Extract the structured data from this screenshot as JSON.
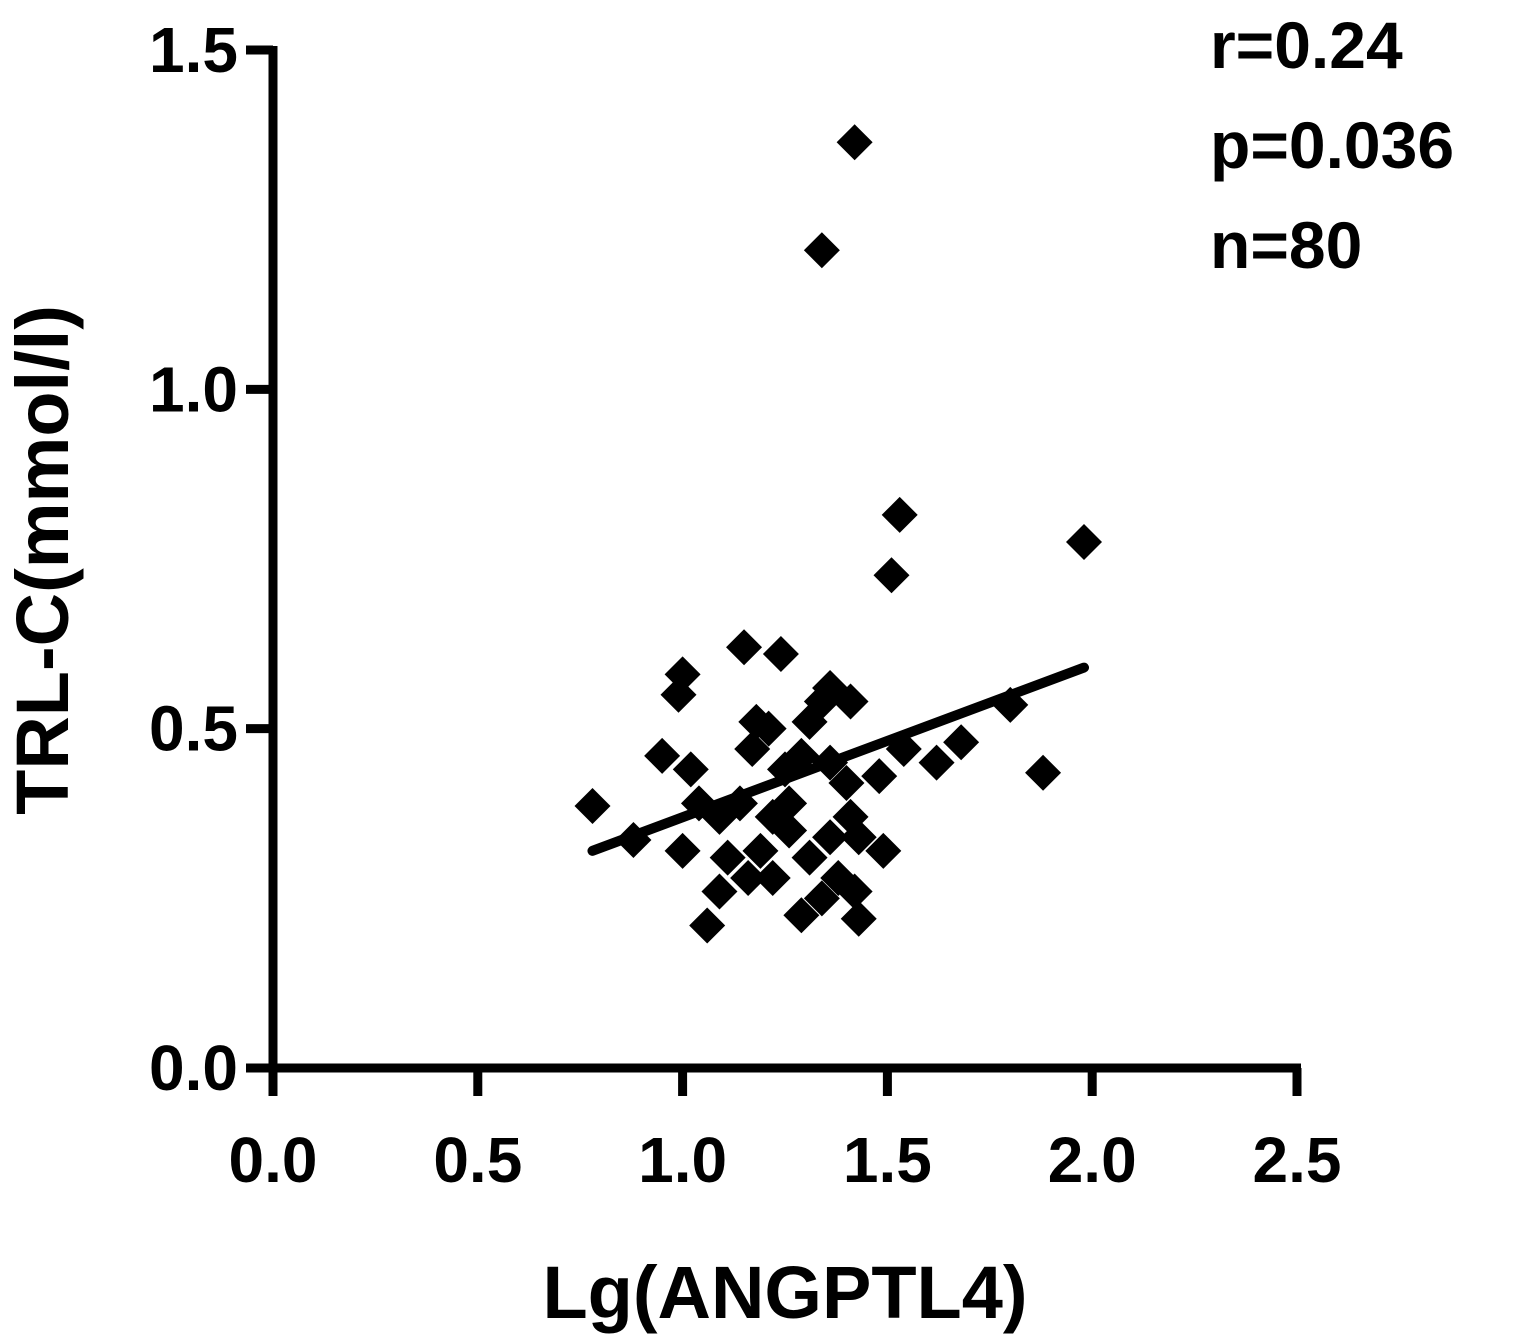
{
  "chart_data": {
    "type": "scatter",
    "xlabel": "Lg(ANGPTL4)",
    "ylabel": "TRL-C(mmol/l)",
    "annotations": [
      "r=0.24",
      "p=0.036",
      "n=80"
    ],
    "xlim": [
      0,
      2.5
    ],
    "ylim": [
      0,
      1.5
    ],
    "xticks": [
      {
        "value": 0,
        "label": "0.0"
      },
      0.5,
      {
        "value": 1,
        "label": "1.0"
      },
      1.5,
      {
        "value": 2,
        "label": "2.0"
      },
      2.5
    ],
    "yticks": [
      {
        "value": 0,
        "label": "0.0"
      },
      0.5,
      {
        "value": 1,
        "label": "1.0"
      },
      1.5
    ],
    "color": "#000000",
    "series": [
      {
        "x": [
          0.78,
          0.88,
          1.0,
          0.99,
          0.95,
          1.02,
          1.0,
          1.06,
          1.09,
          1.11,
          1.15,
          1.24,
          1.17,
          1.18,
          1.21,
          1.16,
          1.19,
          1.22,
          1.26,
          1.25,
          1.29,
          1.31,
          1.34,
          1.36,
          1.41,
          1.29,
          1.34,
          1.38,
          1.43,
          1.42,
          1.31,
          1.36,
          1.41,
          1.43,
          1.49,
          1.4,
          1.48,
          1.54,
          1.62,
          1.68,
          1.8,
          1.88,
          1.98,
          1.53,
          1.51,
          1.42,
          1.34,
          1.26,
          1.22,
          1.14,
          1.09,
          1.04,
          1.36
        ],
        "values": [
          0.386,
          0.336,
          0.58,
          0.55,
          0.46,
          0.44,
          0.32,
          0.21,
          0.26,
          0.31,
          0.62,
          0.61,
          0.47,
          0.51,
          0.5,
          0.28,
          0.32,
          0.37,
          0.39,
          0.44,
          0.46,
          0.51,
          0.54,
          0.56,
          0.54,
          0.225,
          0.25,
          0.28,
          0.22,
          0.26,
          0.31,
          0.34,
          0.37,
          0.34,
          0.32,
          0.42,
          0.43,
          0.47,
          0.45,
          0.48,
          0.535,
          0.435,
          0.775,
          0.815,
          0.726,
          1.364,
          1.205,
          0.35,
          0.28,
          0.39,
          0.37,
          0.39,
          0.45
        ]
      }
    ],
    "fit_line": {
      "x": [
        0.78,
        1.98
      ],
      "y": [
        0.32,
        0.59
      ]
    }
  }
}
